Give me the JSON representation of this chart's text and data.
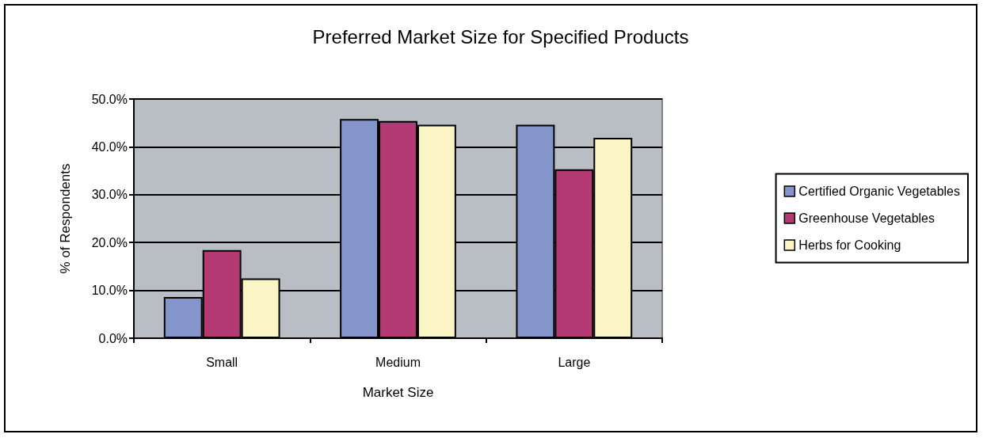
{
  "chart_data": {
    "type": "bar",
    "title": "Preferred Market Size for Specified Products",
    "xlabel": "Market Size",
    "ylabel": "% of Respondents",
    "categories": [
      "Small",
      "Medium",
      "Large"
    ],
    "series": [
      {
        "name": "Certified Organic Vegetables",
        "color": "#8495cc",
        "values": [
          8.6,
          45.8,
          44.6
        ]
      },
      {
        "name": "Greenhouse Vegetables",
        "color": "#b33a72",
        "values": [
          18.4,
          45.4,
          35.3
        ]
      },
      {
        "name": "Herbs for Cooking",
        "color": "#fbf4c4",
        "values": [
          12.5,
          44.6,
          41.9
        ]
      }
    ],
    "ylim": [
      0,
      50
    ],
    "yticks": [
      {
        "value": 0,
        "label": "0.0%"
      },
      {
        "value": 10,
        "label": "10.0%"
      },
      {
        "value": 20,
        "label": "20.0%"
      },
      {
        "value": 30,
        "label": "30.0%"
      },
      {
        "value": 40,
        "label": "40.0%"
      },
      {
        "value": 50,
        "label": "50.0%"
      }
    ],
    "grid": "y",
    "legend": "right"
  }
}
